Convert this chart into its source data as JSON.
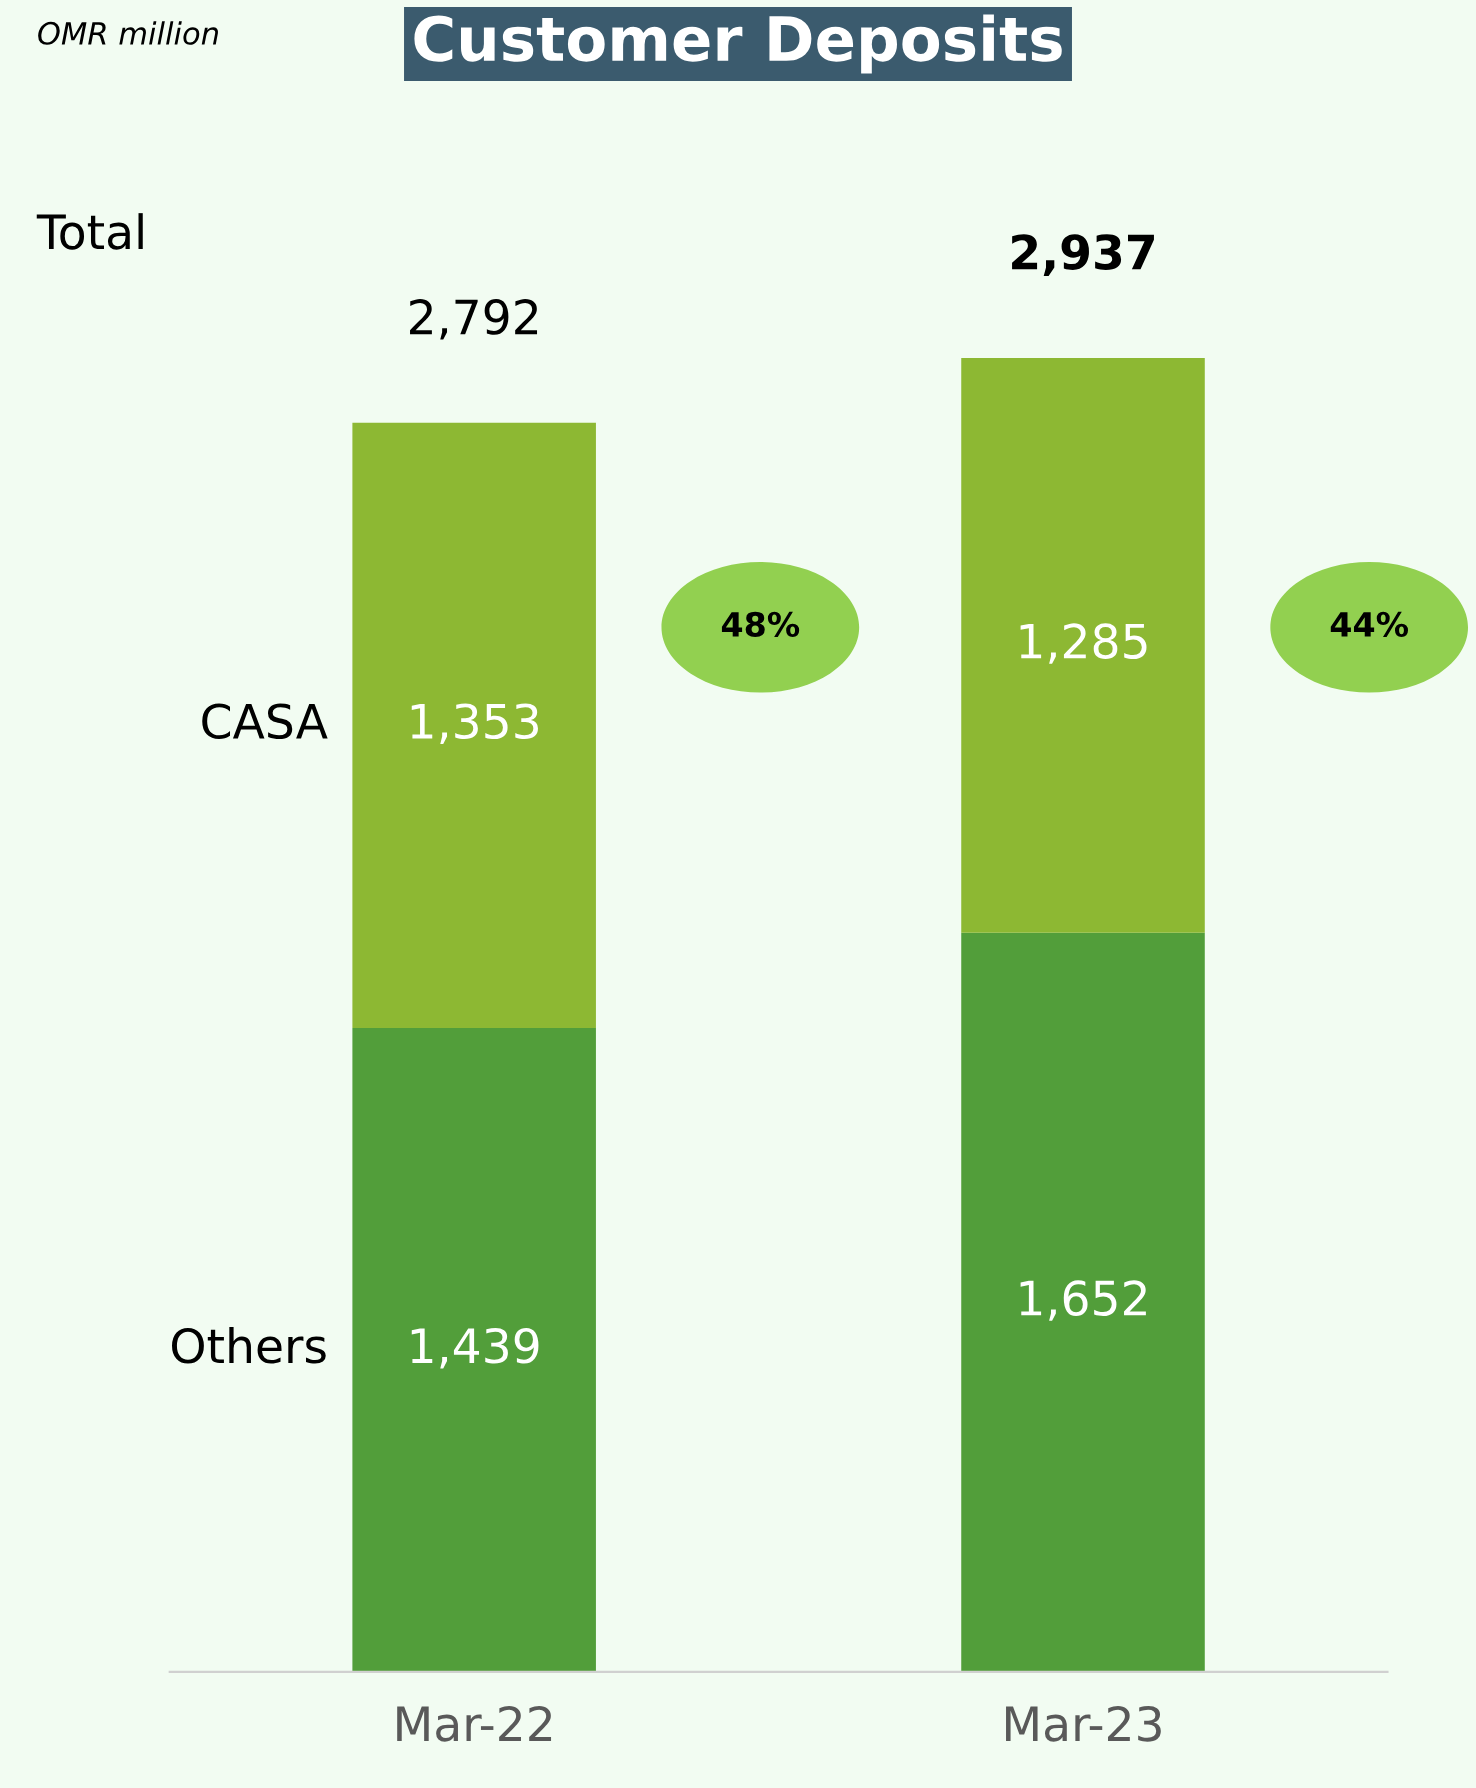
{
  "chart_data": {
    "type": "bar",
    "title": "Customer Deposits",
    "subtitle": "OMR million",
    "categories": [
      "Mar-22",
      "Mar-23"
    ],
    "stacked": true,
    "series": [
      {
        "name": "Others",
        "color": "#529e3a",
        "values": [
          1439,
          1652
        ],
        "value_labels": [
          "1,439",
          "1,652"
        ]
      },
      {
        "name": "CASA",
        "color": "#8db833",
        "values": [
          1353,
          1285
        ],
        "value_labels": [
          "1,353",
          "1,285"
        ]
      }
    ],
    "totals": [
      "2,792",
      "2,937"
    ],
    "annotations": [
      "Total",
      "48%",
      "44%"
    ]
  }
}
